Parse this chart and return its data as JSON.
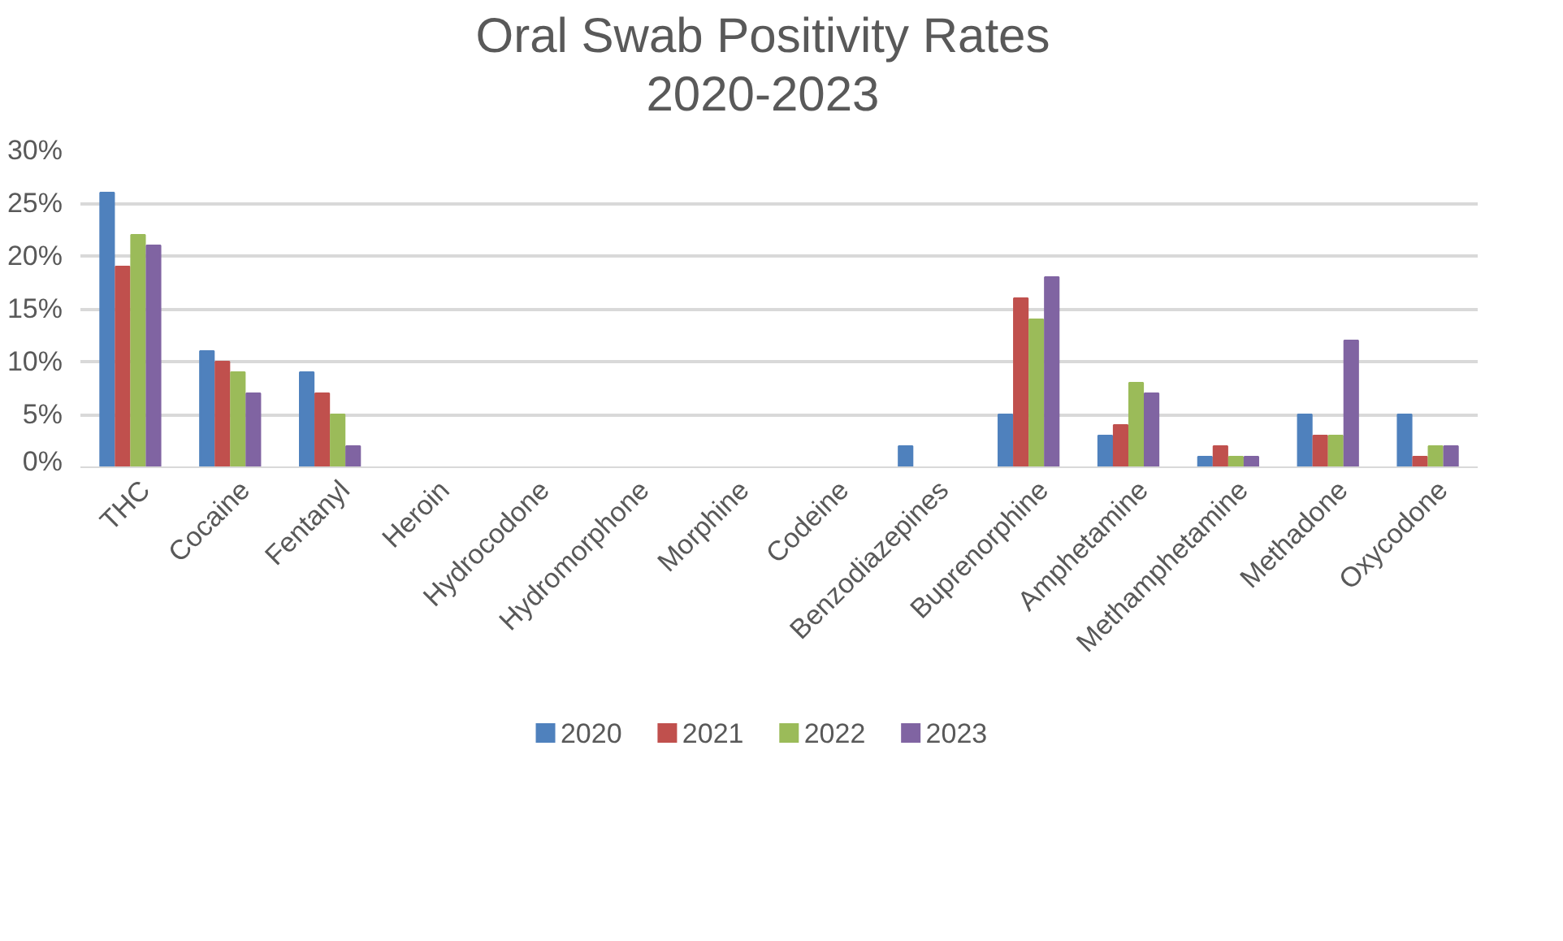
{
  "chart_data": {
    "type": "bar",
    "title": "Oral Swab Positivity Rates\n2020-2023",
    "categories": [
      "THC",
      "Cocaine",
      "Fentanyl",
      "Heroin",
      "Hydrocodone",
      "Hydromorphone",
      "Morphine",
      "Codeine",
      "Benzodiazepines",
      "Buprenorphine",
      "Amphetamine",
      "Methamphetamine",
      "Methadone",
      "Oxycodone"
    ],
    "series": [
      {
        "name": "2020",
        "color": "#4f81bd",
        "values": [
          26,
          11,
          9,
          0,
          0,
          0,
          0,
          0,
          2,
          5,
          3,
          1,
          5,
          5
        ]
      },
      {
        "name": "2021",
        "color": "#c0504d",
        "values": [
          19,
          10,
          7,
          0,
          0,
          0,
          0,
          0,
          0,
          16,
          4,
          2,
          3,
          1
        ]
      },
      {
        "name": "2022",
        "color": "#9bbb59",
        "values": [
          22,
          9,
          5,
          0,
          0,
          0,
          0,
          0,
          0,
          14,
          8,
          1,
          3,
          2
        ]
      },
      {
        "name": "2023",
        "color": "#8064a2",
        "values": [
          21,
          7,
          2,
          0,
          0,
          0,
          0,
          0,
          0,
          18,
          7,
          1,
          12,
          2
        ]
      }
    ],
    "ylim": [
      0,
      30
    ],
    "yticks": [
      {
        "value": 0,
        "label": "0%"
      },
      {
        "value": 5,
        "label": "5%"
      },
      {
        "value": 10,
        "label": "10%"
      },
      {
        "value": 15,
        "label": "15%"
      },
      {
        "value": 20,
        "label": "20%"
      },
      {
        "value": 25,
        "label": "25%"
      },
      {
        "value": 30,
        "label": "30%"
      }
    ],
    "grid": "y",
    "legend": "bottom"
  }
}
